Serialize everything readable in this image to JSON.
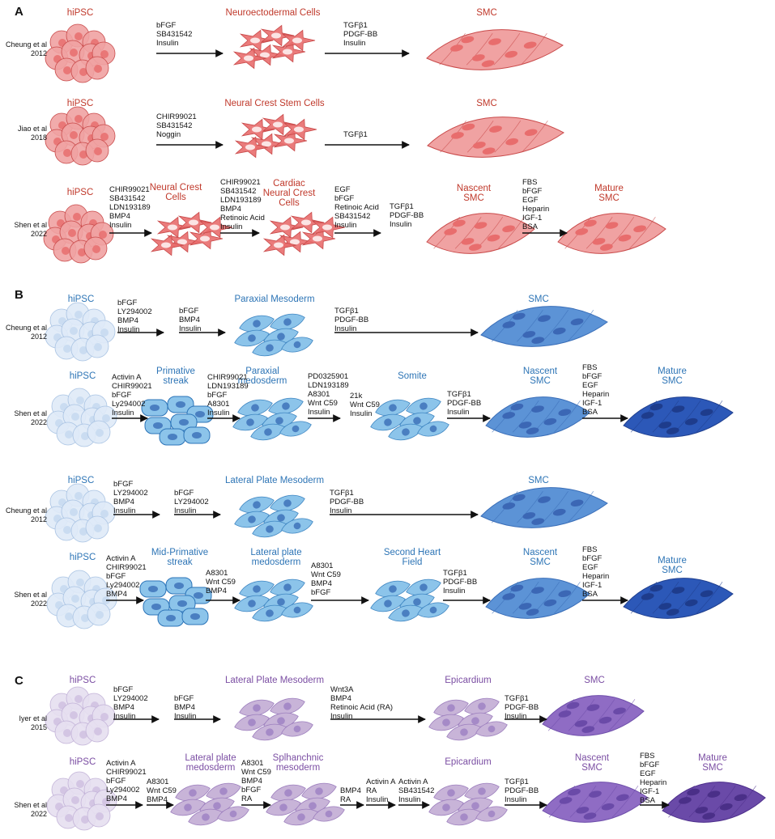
{
  "colors": {
    "red_title": "#c0392b",
    "red_fill": "#f0a2a2",
    "red_fill_dark": "#e86d6d",
    "red_stroke": "#c94a4a",
    "blue_title": "#2e75b6",
    "blue_light": "#dfeaf7",
    "blue_mid": "#8cc4ea",
    "blue_med": "#5c93d6",
    "blue_dark": "#2c58b8",
    "purple_title": "#7b4ea3",
    "purple_light": "#e6dff0",
    "purple_mid": "#c8b4d8",
    "purple_med": "#8f6cc4",
    "purple_dark": "#6a4aa8"
  },
  "sections": {
    "a": "A",
    "b": "B",
    "c": "C"
  },
  "citations": {
    "a1": [
      "Cheung et al",
      "2012"
    ],
    "a2": [
      "Jiao et al",
      "2018"
    ],
    "a3": [
      "Shen et al",
      "2022"
    ],
    "b1": [
      "Cheung et al",
      "2012"
    ],
    "b2": [
      "Shen et al",
      "2022"
    ],
    "b3": [
      "Cheung et al",
      "2012"
    ],
    "b4": [
      "Shen et al",
      "2022"
    ],
    "c1": [
      "Iyer et al",
      "2015"
    ],
    "c2": [
      "Shen et al",
      "2022"
    ]
  },
  "stage_labels": {
    "a1": [
      "hiPSC",
      "Neuroectodermal Cells",
      "SMC"
    ],
    "a2": [
      "hiPSC",
      "Neural Crest Stem Cells",
      "SMC"
    ],
    "a3": [
      "hiPSC",
      "Neural Crest|Cells",
      "Cardiac|Neural Crest|Cells",
      "Nascent|SMC",
      "Mature|SMC"
    ],
    "b1": [
      "hiPSC",
      "Paraxial Mesoderm",
      "SMC"
    ],
    "b2": [
      "hiPSC",
      "Primative|streak",
      "Paraxial|medosderm",
      "Somite",
      "Nascent|SMC",
      "Mature|SMC"
    ],
    "b3": [
      "hiPSC",
      "Lateral Plate Mesoderm",
      "SMC"
    ],
    "b4": [
      "hiPSC",
      "Mid-Primative|streak",
      "Lateral plate|medosderm",
      "Second Heart|Field",
      "Nascent|SMC",
      "Mature|SMC"
    ],
    "c1": [
      "hiPSC",
      "Lateral Plate Mesoderm",
      "Epicardium",
      "SMC"
    ],
    "c2": [
      "hiPSC",
      "Lateral plate|medosderm",
      "Splhanchnic|mesoderm",
      "Epicardium",
      "Nascent|SMC",
      "Mature|SMC"
    ]
  },
  "factor_lists": {
    "a1": [
      [
        "bFGF",
        "SB431542",
        "Insulin"
      ],
      [
        "TGFβ1",
        "PDGF-BB",
        "Insulin"
      ]
    ],
    "a2": [
      [
        "CHIR99021",
        "SB431542",
        "Noggin"
      ],
      [
        "TGFβ1"
      ]
    ],
    "a3": [
      [
        "CHIR99021",
        "SB431542",
        "LDN193189",
        "BMP4",
        "Insulin"
      ],
      [
        "CHIR99021",
        "SB431542",
        "LDN193189",
        "BMP4",
        "Retinoic Acid",
        "Insulin"
      ],
      [
        "EGF",
        "bFGF",
        "Retinoic Acid",
        "SB431542",
        "Insulin"
      ],
      [
        "TGFβ1",
        "PDGF-BB",
        "Insulin"
      ],
      [
        "FBS",
        "bFGF",
        "EGF",
        "Heparin",
        "IGF-1",
        "BSA"
      ]
    ],
    "b1": [
      [
        "bFGF",
        "LY294002",
        "BMP4",
        "Insulin"
      ],
      [
        "bFGF",
        "BMP4",
        "Insulin"
      ],
      [
        "TGFβ1",
        "PDGF-BB",
        "Insulin"
      ]
    ],
    "b2": [
      [
        "Activin A",
        "CHIR99021",
        "bFGF",
        "Ly294002",
        "Insulin"
      ],
      [
        "CHIR99021",
        "LDN193189",
        "bFGF",
        "A8301",
        "Insulin"
      ],
      [
        "PD0325901",
        "LDN193189",
        "A8301",
        "Wnt C59",
        "Insulin"
      ],
      [
        "21k",
        "Wnt C59",
        "Insulin"
      ],
      [
        "TGFβ1",
        "PDGF-BB",
        "Insulin"
      ],
      [
        "FBS",
        "bFGF",
        "EGF",
        "Heparin",
        "IGF-1",
        "BSA"
      ]
    ],
    "b3": [
      [
        "bFGF",
        "LY294002",
        "BMP4",
        "Insulin"
      ],
      [
        "bFGF",
        "LY294002",
        "Insulin"
      ],
      [
        "TGFβ1",
        "PDGF-BB",
        "Insulin"
      ]
    ],
    "b4": [
      [
        "Activin A",
        "CHIR99021",
        "bFGF",
        "Ly294002",
        "BMP4"
      ],
      [
        "A8301",
        "Wnt C59",
        "BMP4"
      ],
      [
        "A8301",
        "Wnt C59",
        "BMP4",
        "bFGF"
      ],
      [
        "TGFβ1",
        "PDGF-BB",
        "Insulin"
      ],
      [
        "FBS",
        "bFGF",
        "EGF",
        "Heparin",
        "IGF-1",
        "BSA"
      ]
    ],
    "c1": [
      [
        "bFGF",
        "LY294002",
        "BMP4",
        "Insulin"
      ],
      [
        "bFGF",
        "BMP4",
        "Insulin"
      ],
      [
        "Wnt3A",
        "BMP4",
        "Retinoic Acid (RA)",
        "Insulin"
      ],
      [
        "TGFβ1",
        "PDGF-BB",
        "Insulin"
      ]
    ],
    "c2": [
      [
        "Activin A",
        "CHIR99021",
        "bFGF",
        "Ly294002",
        "BMP4"
      ],
      [
        "A8301",
        "Wnt C59",
        "BMP4"
      ],
      [
        "A8301",
        "Wnt C59",
        "BMP4",
        "bFGF",
        "RA"
      ],
      [
        "BMP4",
        "RA"
      ],
      [
        "Activin A",
        "RA",
        "Insulin"
      ],
      [
        "Activin A",
        "SB431542",
        "Insulin"
      ],
      [
        "TGFβ1",
        "PDGF-BB",
        "Insulin"
      ],
      [
        "FBS",
        "bFGF",
        "EGF",
        "Heparin",
        "IGF-1",
        "BSA"
      ]
    ]
  }
}
